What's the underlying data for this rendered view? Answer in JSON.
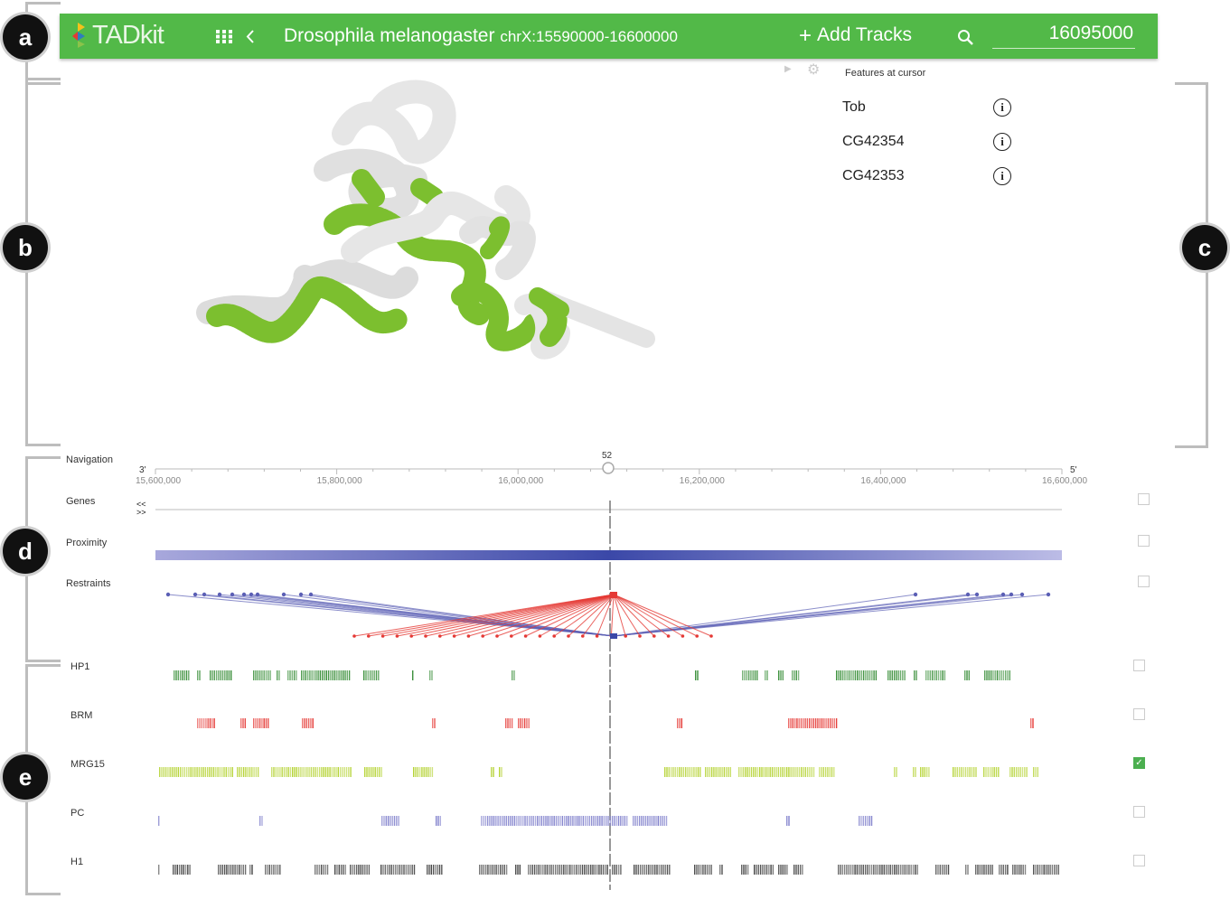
{
  "callouts": [
    "a",
    "b",
    "c",
    "d",
    "e"
  ],
  "appbar": {
    "logo": "TADkit",
    "title": "Drosophila melanogaster",
    "subtitle": "chrX:15590000-16600000",
    "add_tracks": "Add Tracks",
    "position": "16095000",
    "icons": [
      "apps-grid-icon",
      "chevron-left-icon",
      "plus-icon",
      "search-icon"
    ],
    "accent": "#52b948"
  },
  "features": {
    "heading": "Features at cursor",
    "items": [
      {
        "name": "Tob"
      },
      {
        "name": "CG42354"
      },
      {
        "name": "CG42353"
      }
    ]
  },
  "navigation": {
    "label": "Navigation",
    "cursor_value": "52",
    "left_end": "3'",
    "right_end": "5'",
    "ticks": [
      "15,600,000",
      "15,800,000",
      "16,000,000",
      "16,200,000",
      "16,400,000",
      "16,600,000"
    ]
  },
  "tracks": [
    {
      "label": "Genes",
      "checked": false,
      "arrows": [
        "<<",
        ">>"
      ]
    },
    {
      "label": "Proximity",
      "checked": false
    },
    {
      "label": "Restraints",
      "checked": false
    },
    {
      "label": "HP1",
      "checked": false,
      "color": "#3a8f3a"
    },
    {
      "label": "BRM",
      "checked": false,
      "color": "#e53935"
    },
    {
      "label": "MRG15",
      "checked": true,
      "color": "#b5d334"
    },
    {
      "label": "PC",
      "checked": false,
      "color": "#7e7ecb"
    },
    {
      "label": "H1",
      "checked": false,
      "color": "#444444"
    }
  ]
}
